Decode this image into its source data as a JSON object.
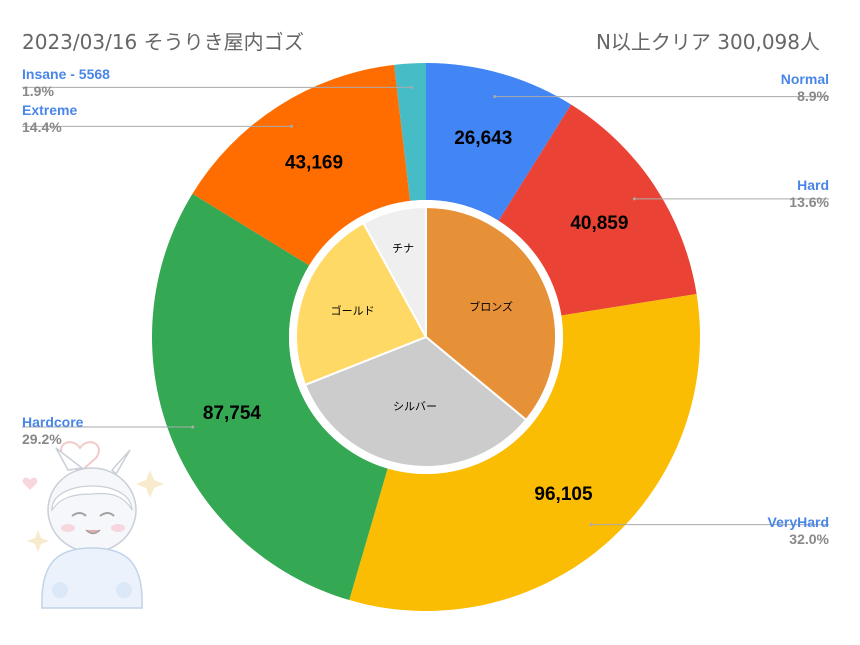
{
  "header": {
    "left_title": "2023/03/16 そうりき屋内ゴズ",
    "right_title": "N以上クリア  300,098人"
  },
  "colors": {
    "label_blue": "#4a86e8",
    "percent_gray": "#888888",
    "leader_gray": "#aaaaaa"
  },
  "chart_data": [
    {
      "type": "pie",
      "ring": "outer",
      "categories": [
        "Normal",
        "Hard",
        "VeryHard",
        "Hardcore",
        "Extreme",
        "Insane - 5568"
      ],
      "values": [
        26643,
        40859,
        96105,
        87754,
        43169,
        5568
      ],
      "value_labels": [
        "26,643",
        "40,859",
        "96,105",
        "87,754",
        "43,169",
        ""
      ],
      "percent_labels": [
        "8.9%",
        "13.6%",
        "32.0%",
        "29.2%",
        "14.4%",
        "1.9%"
      ],
      "colors": [
        "#4285f4",
        "#ea4335",
        "#fbbc04",
        "#34a853",
        "#ff6d01",
        "#46bdc6"
      ]
    },
    {
      "type": "pie",
      "ring": "inner",
      "categories": [
        "ブロンズ",
        "シルバー",
        "ゴールド",
        "チナ"
      ],
      "values": [
        36,
        33,
        23,
        8
      ],
      "colors": [
        "#e69138",
        "#cccccc",
        "#ffd966",
        "#efefef"
      ]
    }
  ]
}
